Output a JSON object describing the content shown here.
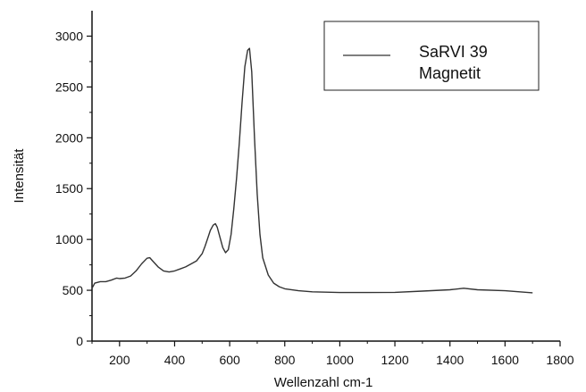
{
  "chart_data": {
    "type": "line",
    "xlabel": "Wellenzahl cm-1",
    "ylabel": "Intensität",
    "xlim": [
      100,
      1800
    ],
    "ylim": [
      0,
      3250
    ],
    "x_ticks": [
      200,
      400,
      600,
      800,
      1000,
      1200,
      1400,
      1600,
      1800
    ],
    "y_ticks": [
      0,
      500,
      1000,
      1500,
      2000,
      2500,
      3000
    ],
    "grid": false,
    "legend_position": "top-right",
    "legend_lines": [
      "SaRVI 39",
      "Magnetit"
    ],
    "series": [
      {
        "name": "SaRVI 39 Magnetit",
        "color": "#333333",
        "x": [
          100,
          110,
          130,
          150,
          170,
          190,
          200,
          220,
          240,
          260,
          280,
          300,
          310,
          320,
          340,
          360,
          380,
          400,
          420,
          440,
          460,
          480,
          500,
          510,
          520,
          530,
          540,
          548,
          555,
          565,
          575,
          585,
          595,
          605,
          615,
          625,
          635,
          645,
          655,
          665,
          672,
          680,
          690,
          700,
          710,
          720,
          740,
          760,
          780,
          800,
          850,
          900,
          1000,
          1100,
          1200,
          1300,
          1400,
          1450,
          1500,
          1600,
          1700
        ],
        "y": [
          520,
          570,
          585,
          585,
          600,
          620,
          615,
          620,
          640,
          690,
          760,
          815,
          820,
          790,
          730,
          690,
          680,
          690,
          710,
          730,
          760,
          790,
          860,
          930,
          1010,
          1090,
          1140,
          1155,
          1120,
          1020,
          920,
          870,
          900,
          1050,
          1300,
          1600,
          1950,
          2350,
          2700,
          2860,
          2880,
          2650,
          2000,
          1450,
          1050,
          820,
          650,
          570,
          535,
          515,
          495,
          485,
          478,
          478,
          480,
          492,
          505,
          520,
          505,
          495,
          475
        ]
      }
    ]
  }
}
